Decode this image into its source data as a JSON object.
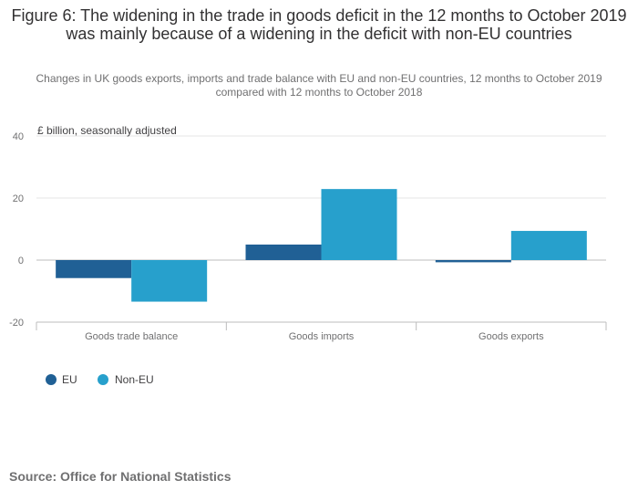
{
  "chart_data": {
    "type": "bar",
    "title": "Figure 6: The widening in the trade in goods deficit in the 12 months to October 2019 was mainly because of a widening in the deficit with non-EU countries",
    "subtitle": "Changes in UK goods exports, imports and trade balance with EU and non-EU countries, 12 months to October 2019 compared with 12 months to October 2018",
    "ylabel": "£ billion, seasonally adjusted",
    "xlabel": "",
    "categories": [
      "Goods trade balance",
      "Goods imports",
      "Goods exports"
    ],
    "series": [
      {
        "name": "EU",
        "color": "#206095",
        "values": [
          -5.8,
          5.0,
          -0.7
        ]
      },
      {
        "name": "Non-EU",
        "color": "#27a0cc",
        "values": [
          -13.4,
          22.9,
          9.4
        ]
      }
    ],
    "ylim": [
      -20,
      40
    ],
    "yticks": [
      "40",
      "20",
      "0",
      "-20"
    ],
    "grid": true,
    "legend_position": "bottom-left"
  },
  "source": "Source: Office for National Statistics"
}
